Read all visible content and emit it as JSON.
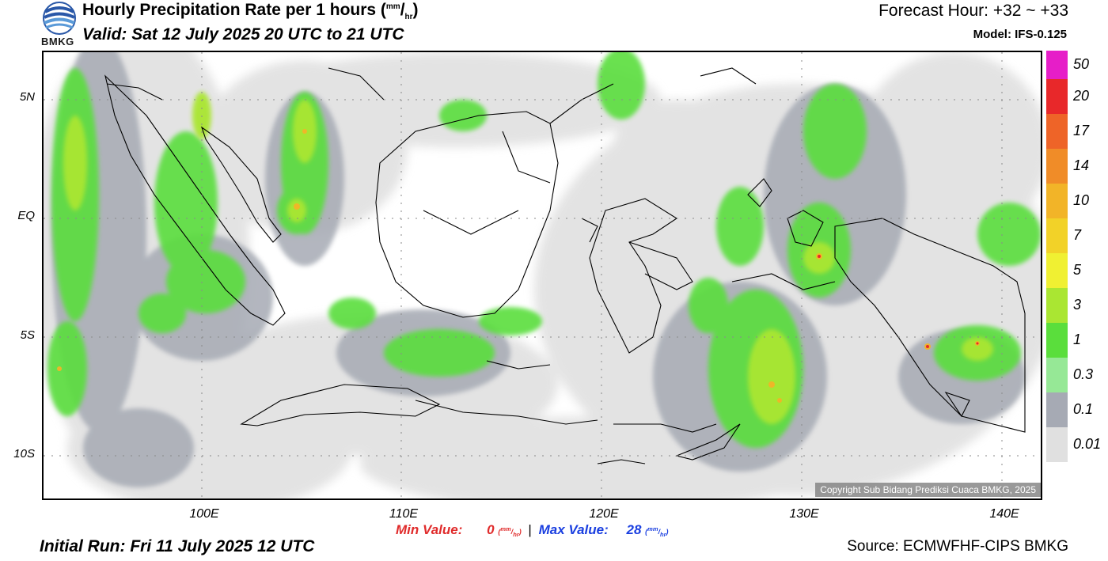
{
  "header": {
    "title_main": "Hourly Precipitation Rate per 1 hours (",
    "title_unit_top": "mm",
    "title_unit_bottom": "hr",
    "title_close": ")",
    "valid": "Valid: Sat 12 July 2025 20 UTC to 21 UTC",
    "forecast_hour": "Forecast Hour: +32 ~ +33",
    "model": "Model: IFS-0.125"
  },
  "logo": {
    "text": "BMKG",
    "icon": "bmkg-logo"
  },
  "map": {
    "lat_labels": [
      "5N",
      "EQ",
      "5S",
      "10S"
    ],
    "lon_labels": [
      "100E",
      "110E",
      "120E",
      "130E",
      "140E"
    ],
    "copyright": "Copyright Sub Bidang Prediksi Cuaca BMKG, 2025"
  },
  "stats": {
    "min_label": "Min Value:",
    "min_value": "0",
    "max_label": "Max Value:",
    "max_value": "28",
    "unit_top": "mm",
    "unit_bottom": "hr",
    "separator": "|"
  },
  "footer": {
    "initial_run": "Initial Run: Fri 11 July 2025 12 UTC",
    "source": "Source: ECMWFHF-CIPS BMKG"
  },
  "colorbar": {
    "labels": [
      "50",
      "20",
      "17",
      "14",
      "10",
      "7",
      "5",
      "3",
      "1",
      "0.3",
      "0.1",
      "0.01"
    ],
    "colors": [
      "#e61ec8",
      "#e8282a",
      "#ee6428",
      "#f08c28",
      "#f2b428",
      "#f2d228",
      "#f0f032",
      "#aae632",
      "#5ade3c",
      "#96e896",
      "#a6aab4",
      "#e0e0e0"
    ]
  }
}
